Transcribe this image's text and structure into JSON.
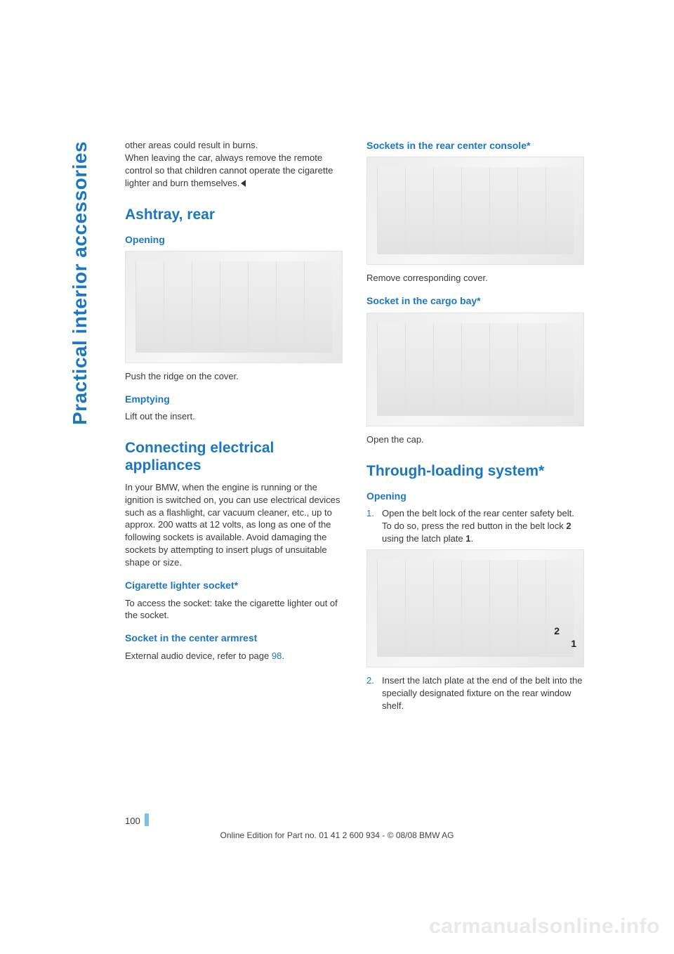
{
  "side_title": "Practical interior accessories",
  "left": {
    "intro_p1": "other areas could result in burns.",
    "intro_p2": "When leaving the car, always remove the remote control so that children cannot operate the cigarette lighter and burn themselves.",
    "h_ashtray": "Ashtray, rear",
    "h_opening": "Opening",
    "p_push_ridge": "Push the ridge on the cover.",
    "h_emptying": "Emptying",
    "p_lift_insert": "Lift out the insert.",
    "h_connecting": "Connecting electrical appliances",
    "p_connecting": "In your BMW, when the engine is running or the ignition is switched on, you can use electrical devices such as a flashlight, car vacuum cleaner, etc., up to approx. 200 watts at 12 volts, as long as one of the following sockets is available. Avoid damaging the sockets by attempting to insert plugs of unsuitable shape or size.",
    "h_cig_socket": "Cigarette lighter socket*",
    "p_cig_socket": "To access the socket: take the cigarette lighter out of the socket.",
    "h_center_armrest": "Socket in the center armrest",
    "p_center_armrest_pre": "External audio device, refer to page ",
    "p_center_armrest_link": "98",
    "p_center_armrest_post": "."
  },
  "right": {
    "h_rear_console": "Sockets in the rear center console*",
    "p_remove_cover": "Remove corresponding cover.",
    "h_cargo_bay": "Socket in the cargo bay*",
    "p_open_cap": "Open the cap.",
    "h_through_loading": "Through-loading system*",
    "h_opening2": "Opening",
    "step1_num": "1.",
    "step1_pre": "Open the belt lock of the rear center safety belt. To do so, press the red button in the belt lock ",
    "step1_b2": "2",
    "step1_mid": " using the latch plate ",
    "step1_b1": "1",
    "step1_post": ".",
    "fig_label_1": "1",
    "fig_label_2": "2",
    "step2_num": "2.",
    "step2_text": "Insert the latch plate at the end of the belt into the specially designated fixture on the rear window shelf."
  },
  "footer": {
    "page_number": "100",
    "line": "Online Edition for Part no. 01 41 2 600 934 - © 08/08 BMW AG"
  },
  "watermark": "carmanualsonline.info"
}
